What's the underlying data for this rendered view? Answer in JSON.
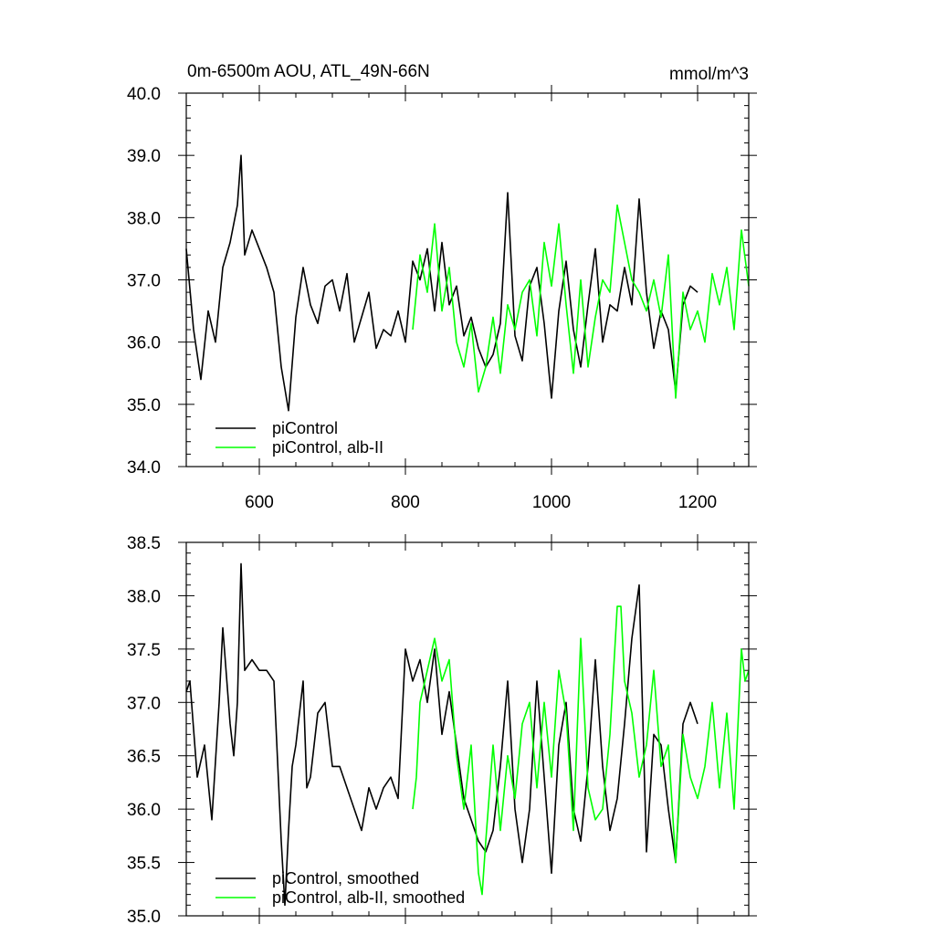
{
  "chart_data": [
    {
      "type": "line",
      "title": "0m-6500m AOU, ATL_49N-66N",
      "units_label": "mmol/m^3",
      "xlim": [
        500,
        1270
      ],
      "ylim": [
        34.0,
        40.0
      ],
      "x_ticks": [
        600,
        800,
        1000,
        1200
      ],
      "x_tick_labels": [
        "600",
        "800",
        "1000",
        "1200"
      ],
      "y_ticks": [
        34.0,
        35.0,
        36.0,
        37.0,
        38.0,
        39.0,
        40.0
      ],
      "y_tick_labels": [
        "34.0",
        "35.0",
        "36.0",
        "37.0",
        "38.0",
        "39.0",
        "40.0"
      ],
      "legend_position": "bottom-left",
      "series": [
        {
          "name": "piControl",
          "color": "#000000",
          "x": [
            500,
            510,
            520,
            530,
            540,
            550,
            560,
            570,
            575,
            580,
            590,
            600,
            610,
            620,
            630,
            640,
            650,
            660,
            670,
            680,
            690,
            700,
            710,
            720,
            730,
            740,
            750,
            760,
            770,
            780,
            790,
            800,
            810,
            820,
            830,
            840,
            850,
            860,
            870,
            880,
            890,
            900,
            910,
            920,
            930,
            940,
            950,
            960,
            970,
            980,
            990,
            1000,
            1010,
            1020,
            1030,
            1040,
            1050,
            1060,
            1070,
            1080,
            1090,
            1100,
            1110,
            1120,
            1130,
            1140,
            1150,
            1160,
            1170,
            1180,
            1190,
            1200
          ],
          "y": [
            37.5,
            36.2,
            35.4,
            36.5,
            36.0,
            37.2,
            37.6,
            38.2,
            39.0,
            37.4,
            37.8,
            37.5,
            37.2,
            36.8,
            35.6,
            34.9,
            36.4,
            37.2,
            36.6,
            36.3,
            36.9,
            37.0,
            36.5,
            37.1,
            36.0,
            36.4,
            36.8,
            35.9,
            36.2,
            36.1,
            36.5,
            36.0,
            37.3,
            37.0,
            37.5,
            36.5,
            37.6,
            36.6,
            36.9,
            36.1,
            36.4,
            35.9,
            35.6,
            35.8,
            36.3,
            38.4,
            36.1,
            35.7,
            36.9,
            37.2,
            36.3,
            35.1,
            36.5,
            37.3,
            36.2,
            35.6,
            36.6,
            37.5,
            36.0,
            36.6,
            36.5,
            37.2,
            36.6,
            38.3,
            36.8,
            35.9,
            36.5,
            36.2,
            35.2,
            36.6,
            36.9,
            36.8
          ]
        },
        {
          "name": "piControl, alb-II",
          "color": "#00ff00",
          "x": [
            810,
            820,
            830,
            840,
            850,
            860,
            870,
            880,
            890,
            900,
            910,
            920,
            930,
            940,
            950,
            960,
            970,
            980,
            990,
            1000,
            1010,
            1020,
            1030,
            1040,
            1050,
            1060,
            1070,
            1080,
            1090,
            1100,
            1110,
            1120,
            1130,
            1140,
            1150,
            1160,
            1170,
            1180,
            1190,
            1200,
            1210,
            1220,
            1230,
            1240,
            1250,
            1260,
            1270
          ],
          "y": [
            36.2,
            37.4,
            36.8,
            37.9,
            36.5,
            37.2,
            36.0,
            35.6,
            36.3,
            35.2,
            35.6,
            36.4,
            35.5,
            36.6,
            36.2,
            36.8,
            37.0,
            36.1,
            37.6,
            36.9,
            37.9,
            36.6,
            35.5,
            37.0,
            35.6,
            36.4,
            37.0,
            36.8,
            38.2,
            37.6,
            37.0,
            36.8,
            36.5,
            37.0,
            36.4,
            37.4,
            35.1,
            36.8,
            36.2,
            36.5,
            36.0,
            37.1,
            36.6,
            37.2,
            36.2,
            37.8,
            36.9
          ]
        }
      ]
    },
    {
      "type": "line",
      "xlim": [
        500,
        1270
      ],
      "ylim": [
        35.0,
        38.5
      ],
      "x_ticks": [
        600,
        800,
        1000,
        1200
      ],
      "y_ticks": [
        35.0,
        35.5,
        36.0,
        36.5,
        37.0,
        37.5,
        38.0,
        38.5
      ],
      "y_tick_labels": [
        "35.0",
        "35.5",
        "36.0",
        "36.5",
        "37.0",
        "37.5",
        "38.0",
        "38.5"
      ],
      "legend_position": "bottom-left",
      "series": [
        {
          "name": "piControl, smoothed",
          "color": "#000000",
          "x": [
            500,
            505,
            515,
            525,
            535,
            545,
            550,
            560,
            565,
            570,
            575,
            580,
            590,
            600,
            610,
            620,
            630,
            635,
            640,
            645,
            650,
            660,
            665,
            670,
            680,
            690,
            700,
            710,
            720,
            730,
            740,
            750,
            760,
            770,
            780,
            790,
            800,
            810,
            820,
            830,
            840,
            850,
            860,
            870,
            880,
            890,
            900,
            910,
            920,
            930,
            940,
            950,
            960,
            970,
            980,
            990,
            1000,
            1010,
            1020,
            1030,
            1040,
            1050,
            1060,
            1070,
            1080,
            1090,
            1100,
            1110,
            1120,
            1130,
            1140,
            1150,
            1160,
            1170,
            1180,
            1190,
            1200
          ],
          "y": [
            37.1,
            37.2,
            36.3,
            36.6,
            35.9,
            37.0,
            37.7,
            36.8,
            36.5,
            37.0,
            38.3,
            37.3,
            37.4,
            37.3,
            37.3,
            37.2,
            35.7,
            35.1,
            35.8,
            36.4,
            36.6,
            37.2,
            36.2,
            36.3,
            36.9,
            37.0,
            36.4,
            36.4,
            36.2,
            36.0,
            35.8,
            36.2,
            36.0,
            36.2,
            36.3,
            36.1,
            37.5,
            37.2,
            37.4,
            37.0,
            37.5,
            36.7,
            37.1,
            36.6,
            36.1,
            35.9,
            35.7,
            35.6,
            35.8,
            36.4,
            37.2,
            36.0,
            35.5,
            36.0,
            37.2,
            36.3,
            35.4,
            36.6,
            37.0,
            36.0,
            35.7,
            36.4,
            37.4,
            36.4,
            35.8,
            36.1,
            36.8,
            37.6,
            38.1,
            35.6,
            36.7,
            36.6,
            36.0,
            35.5,
            36.8,
            37.0,
            36.8
          ]
        },
        {
          "name": "piControl, alb-II, smoothed",
          "color": "#00ff00",
          "x": [
            810,
            815,
            820,
            830,
            840,
            850,
            860,
            870,
            880,
            890,
            900,
            905,
            910,
            920,
            930,
            940,
            950,
            960,
            970,
            980,
            990,
            1000,
            1010,
            1020,
            1030,
            1040,
            1050,
            1060,
            1070,
            1080,
            1090,
            1095,
            1100,
            1110,
            1120,
            1130,
            1140,
            1150,
            1160,
            1170,
            1180,
            1190,
            1200,
            1210,
            1220,
            1230,
            1240,
            1250,
            1260,
            1265,
            1270
          ],
          "y": [
            36.0,
            36.3,
            37.0,
            37.3,
            37.6,
            37.2,
            37.4,
            36.5,
            36.0,
            36.6,
            35.4,
            35.2,
            35.7,
            36.6,
            35.8,
            36.5,
            36.1,
            36.8,
            37.0,
            36.2,
            37.0,
            36.3,
            37.3,
            36.9,
            35.8,
            37.6,
            36.2,
            35.9,
            36.0,
            36.7,
            37.9,
            37.9,
            37.2,
            36.9,
            36.3,
            36.6,
            37.3,
            36.4,
            36.6,
            35.5,
            36.7,
            36.3,
            36.1,
            36.4,
            37.0,
            36.2,
            36.9,
            36.0,
            37.5,
            37.2,
            37.3
          ]
        }
      ]
    }
  ]
}
